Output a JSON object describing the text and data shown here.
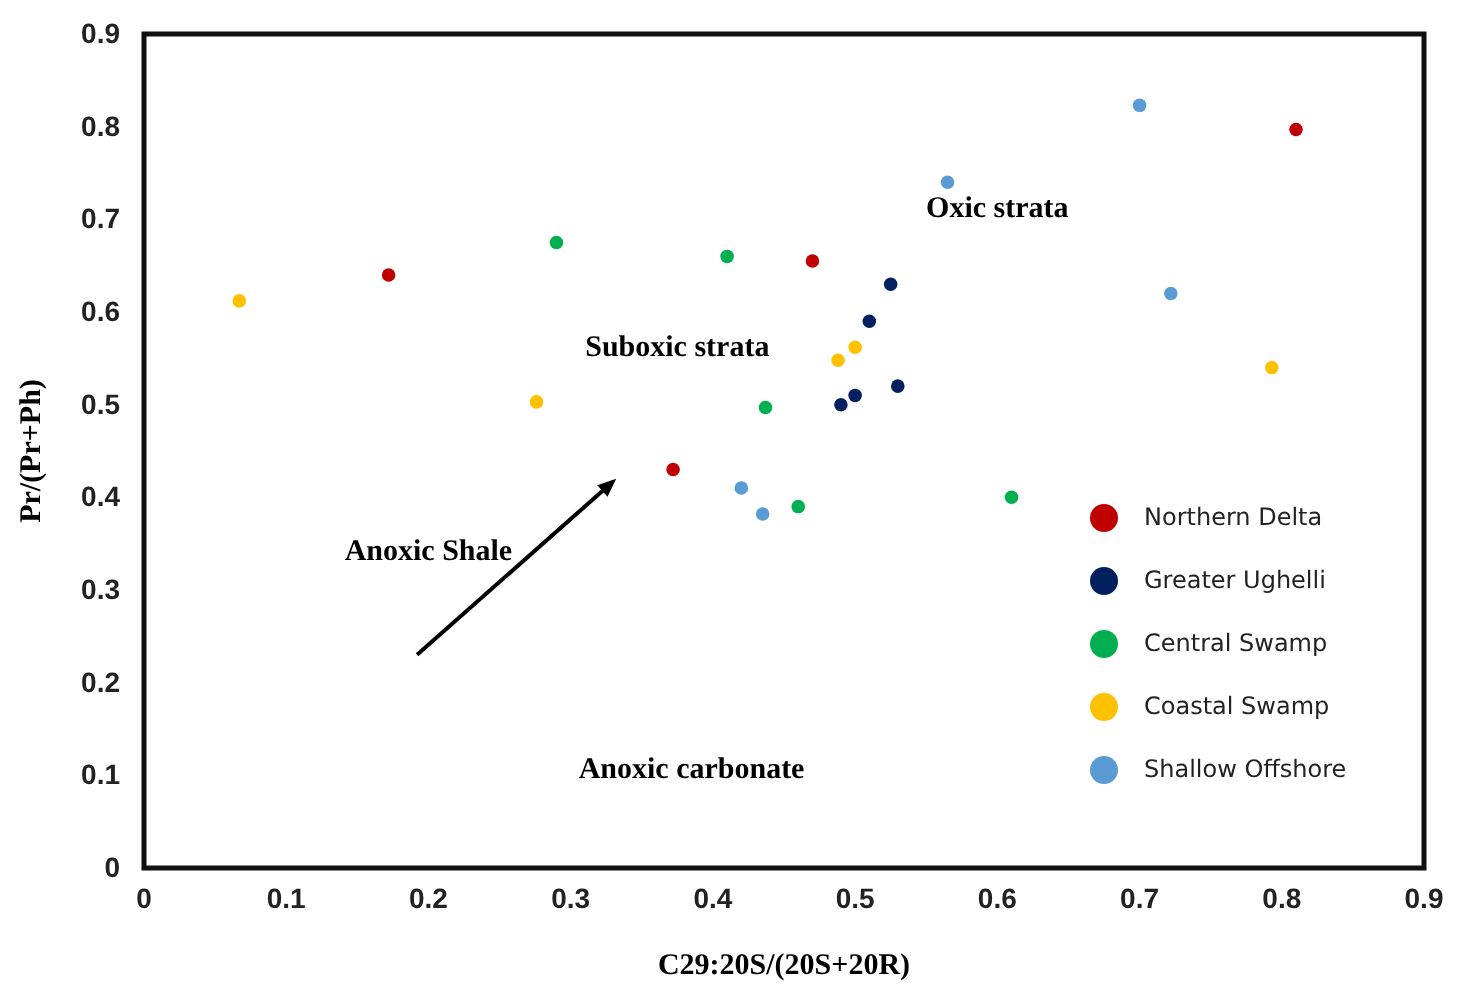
{
  "chart_data": {
    "type": "scatter",
    "xlabel": "C29:20S/(20S+20R)",
    "ylabel": "Pr/(Pr+Ph)",
    "xlim": [
      0,
      0.9
    ],
    "xticks": [
      0,
      0.1,
      0.2,
      0.3,
      0.4,
      0.5,
      0.6,
      0.7,
      0.8,
      0.9
    ],
    "ylim": [
      0,
      0.9
    ],
    "yticks": [
      0,
      0.1,
      0.2,
      0.3,
      0.4,
      0.5,
      0.6,
      0.7,
      0.8,
      0.9
    ],
    "grid": false,
    "legend": "bottom right",
    "marker": "circle",
    "series": [
      {
        "name": "Northern Delta",
        "color": "#c00000",
        "x": [
          0.172,
          0.47,
          0.372,
          0.81
        ],
        "values": [
          0.64,
          0.655,
          0.43,
          0.797
        ]
      },
      {
        "name": "Greater Ughelli",
        "color": "#002060",
        "x": [
          0.525,
          0.51,
          0.53,
          0.5,
          0.49
        ],
        "values": [
          0.63,
          0.59,
          0.52,
          0.51,
          0.5
        ]
      },
      {
        "name": "Central Swamp",
        "color": "#00b050",
        "x": [
          0.29,
          0.41,
          0.437,
          0.46,
          0.61
        ],
        "values": [
          0.675,
          0.66,
          0.497,
          0.39,
          0.4
        ]
      },
      {
        "name": "Coastal Swamp",
        "color": "#ffc000",
        "x": [
          0.067,
          0.276,
          0.488,
          0.5,
          0.793
        ],
        "values": [
          0.612,
          0.503,
          0.548,
          0.562,
          0.54
        ]
      },
      {
        "name": "Shallow Offshore",
        "color": "#5b9bd5",
        "x": [
          0.7,
          0.565,
          0.722,
          0.42,
          0.435
        ],
        "values": [
          0.823,
          0.74,
          0.62,
          0.41,
          0.382
        ]
      }
    ],
    "annotations": [
      "Oxic strata",
      "Suboxic strata",
      "Anoxic Shale",
      "Anoxic carbonate"
    ]
  }
}
